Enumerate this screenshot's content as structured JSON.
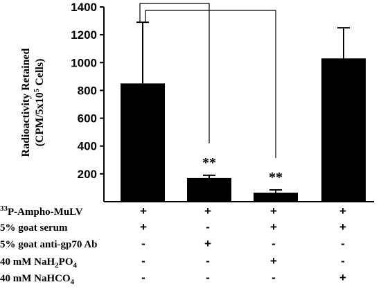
{
  "chart_data": {
    "type": "bar",
    "ylabel_line1": "Radioactivity Retained",
    "ylabel_line2_pre": "(CPM/5x10",
    "ylabel_line2_sup": "5",
    "ylabel_line2_post": " Cells)",
    "ylim": [
      0,
      1400
    ],
    "yticks": [
      200,
      400,
      600,
      800,
      1000,
      1200,
      1400
    ],
    "bar_color": "#000000",
    "values": [
      850,
      170,
      65,
      1030
    ],
    "error_up": [
      440,
      20,
      20,
      220
    ],
    "significance": [
      "",
      "**",
      "**",
      ""
    ],
    "brackets": [
      {
        "from": 0,
        "to": 1
      },
      {
        "from": 0,
        "to": 2
      }
    ],
    "conditions": [
      {
        "label_pre": "",
        "label_sup": "33",
        "label_main": "P-Ampho-MuLV",
        "label_sub": "",
        "label_post": "",
        "values": [
          "+",
          "+",
          "+",
          "+"
        ]
      },
      {
        "label_pre": "5% goat serum",
        "label_sup": "",
        "label_main": "",
        "label_sub": "",
        "label_post": "",
        "values": [
          "+",
          "-",
          "+",
          "+"
        ]
      },
      {
        "label_pre": "5% goat anti-gp70 Ab",
        "label_sup": "",
        "label_main": "",
        "label_sub": "",
        "label_post": "",
        "values": [
          "-",
          "+",
          "-",
          "-"
        ]
      },
      {
        "label_pre": "40 mM NaH",
        "label_sup": "",
        "label_main": "",
        "label_sub": "2",
        "label_post": "PO",
        "label_sub2": "4",
        "values": [
          "-",
          "-",
          "+",
          "-"
        ]
      },
      {
        "label_pre": "40 mM NaHCO",
        "label_sup": "",
        "label_main": "",
        "label_sub": "4",
        "label_post": "",
        "values": [
          "-",
          "-",
          "-",
          "+"
        ]
      }
    ]
  }
}
